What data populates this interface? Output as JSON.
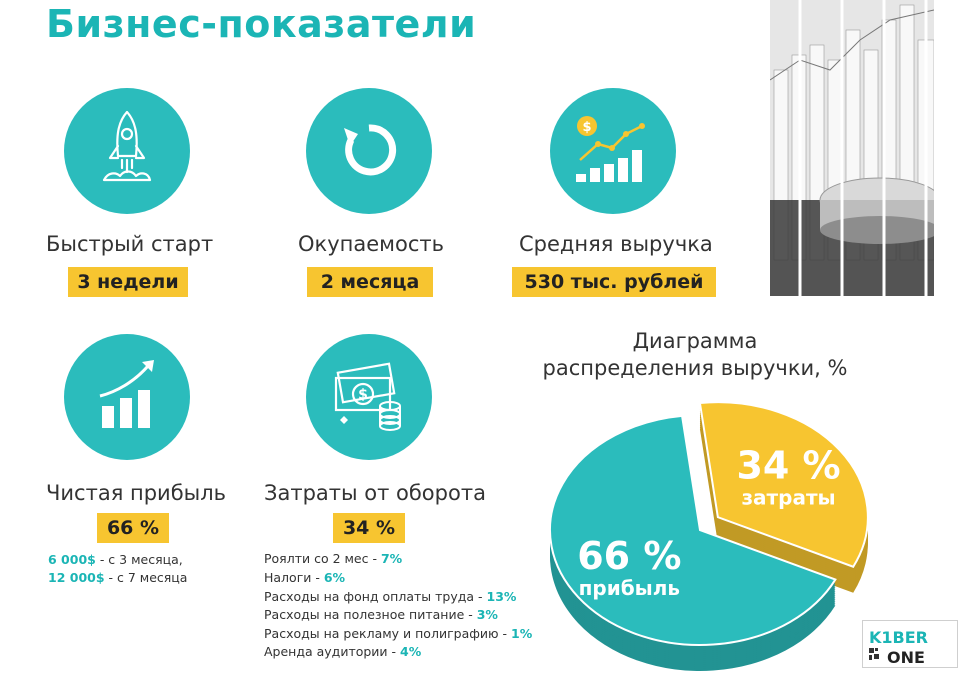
{
  "page": {
    "title": "Бизнес-показатели"
  },
  "metrics": {
    "quick_start": {
      "label": "Быстрый старт",
      "value": "3 недели",
      "icon": "rocket-icon"
    },
    "payback": {
      "label": "Окупаемость",
      "value": "2 месяца",
      "icon": "refresh-icon"
    },
    "avg_revenue": {
      "label": "Средняя выручка",
      "value": "530 тыс. рублей",
      "icon": "growth-chart-icon"
    },
    "net_profit": {
      "label": "Чистая прибыль",
      "value": "66 %",
      "icon": "trend-up-icon",
      "notes": [
        {
          "amount": "6 000$",
          "text": " - с 3 месяца,"
        },
        {
          "amount": "12 000$",
          "text": " - с 7 месяца"
        }
      ]
    },
    "costs": {
      "label": "Затраты от оборота",
      "value": "34 %",
      "icon": "money-coins-icon",
      "items": [
        {
          "name": "Роялти со 2 мес - ",
          "pct": "7%"
        },
        {
          "name": "Налоги - ",
          "pct": "6%"
        },
        {
          "name": "Расходы на фонд оплаты труда - ",
          "pct": "13%"
        },
        {
          "name": "Расходы на полезное питание - ",
          "pct": "3%"
        },
        {
          "name": "Расходы на рекламу и полиграфию - ",
          "pct": "1%"
        },
        {
          "name": "Аренда аудитории - ",
          "pct": "4%"
        }
      ]
    }
  },
  "chart_data": {
    "type": "pie",
    "title_line1": "Диаграмма",
    "title_line2": "распределения выручки, %",
    "slices": [
      {
        "label": "прибыль",
        "value": 66,
        "value_text": "66 %",
        "color": "#2bbcbc"
      },
      {
        "label": "затраты",
        "value": 34,
        "value_text": "34 %",
        "color": "#f7c530"
      }
    ]
  },
  "logo": {
    "line1": "K1BER",
    "line2": "ONE"
  },
  "colors": {
    "accent": "#2bbcbc",
    "highlight": "#f7c530",
    "title": "#1bb5b5"
  }
}
